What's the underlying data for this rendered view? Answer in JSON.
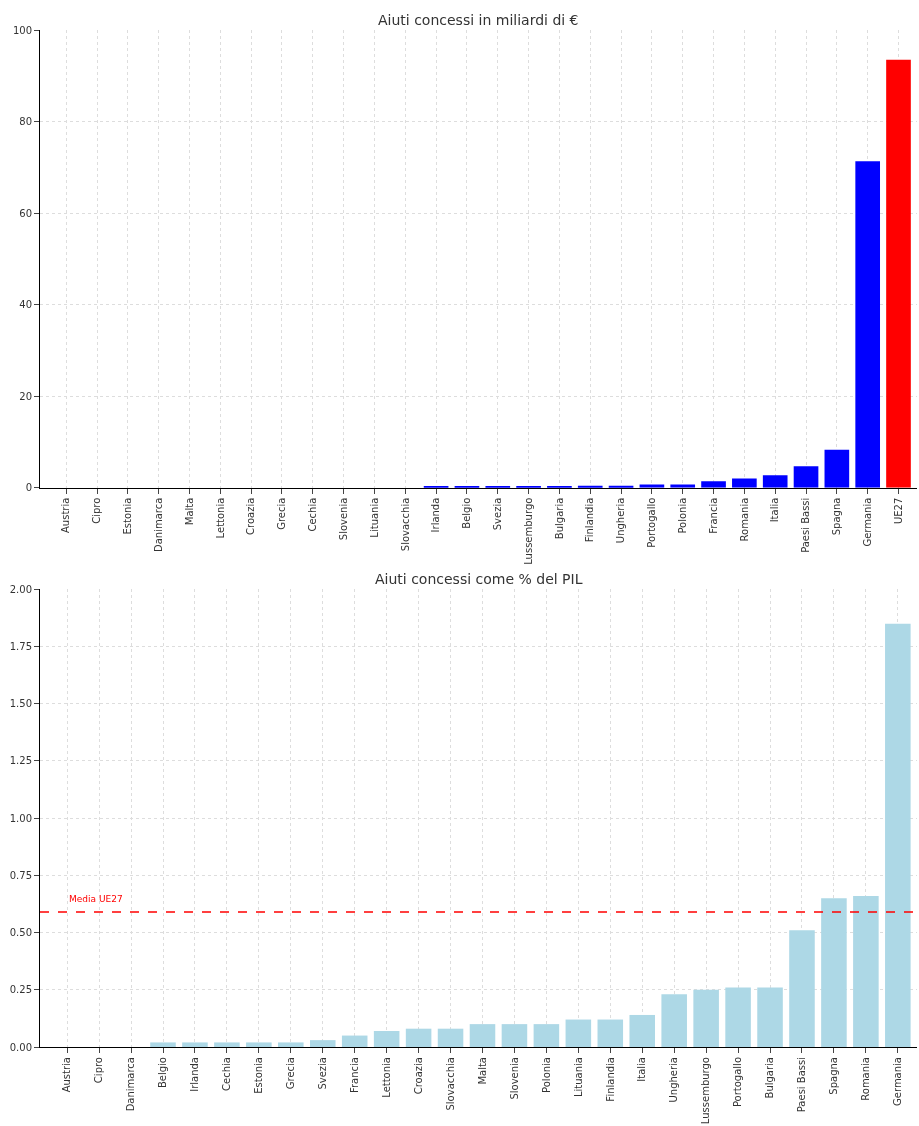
{
  "chart_data": [
    {
      "type": "bar",
      "title": "Aiuti concessi in miliardi di €",
      "categories": [
        "Austria",
        "Cipro",
        "Estonia",
        "Danimarca",
        "Malta",
        "Lettonia",
        "Croazia",
        "Grecia",
        "Cechia",
        "Slovenia",
        "Lituania",
        "Slovacchia",
        "Irlanda",
        "Belgio",
        "Svezia",
        "Lussemburgo",
        "Bulgaria",
        "Finlandia",
        "Ungheria",
        "Portogallo",
        "Polonia",
        "Francia",
        "Romania",
        "Italia",
        "Paesi Bassi",
        "Spagna",
        "Germania",
        "UE27"
      ],
      "values": [
        0,
        0,
        0,
        0,
        0,
        0,
        0,
        0,
        0,
        0,
        0,
        0,
        0.2,
        0.2,
        0.2,
        0.2,
        0.2,
        0.4,
        0.4,
        0.7,
        0.7,
        1.4,
        2.0,
        2.7,
        4.7,
        8.3,
        71.3,
        93.5
      ],
      "colors": [
        "#0000ff",
        "#0000ff",
        "#0000ff",
        "#0000ff",
        "#0000ff",
        "#0000ff",
        "#0000ff",
        "#0000ff",
        "#0000ff",
        "#0000ff",
        "#0000ff",
        "#0000ff",
        "#0000ff",
        "#0000ff",
        "#0000ff",
        "#0000ff",
        "#0000ff",
        "#0000ff",
        "#0000ff",
        "#0000ff",
        "#0000ff",
        "#0000ff",
        "#0000ff",
        "#0000ff",
        "#0000ff",
        "#0000ff",
        "#0000ff",
        "#ff0000"
      ],
      "ylim": [
        0,
        100
      ],
      "yticks": [
        0,
        20,
        40,
        60,
        80,
        100
      ],
      "grid": true
    },
    {
      "type": "bar",
      "title": "Aiuti concessi come % del PIL",
      "categories": [
        "Austria",
        "Cipro",
        "Danimarca",
        "Belgio",
        "Irlanda",
        "Cechia",
        "Estonia",
        "Grecia",
        "Svezia",
        "Francia",
        "Lettonia",
        "Croazia",
        "Slovacchia",
        "Malta",
        "Slovenia",
        "Polonia",
        "Lituania",
        "Finlandia",
        "Italia",
        "Ungheria",
        "Lussemburgo",
        "Portogallo",
        "Bulgaria",
        "Paesi Bassi",
        "Spagna",
        "Romania",
        "Germania"
      ],
      "values": [
        0,
        0,
        0,
        0.02,
        0.02,
        0.02,
        0.02,
        0.02,
        0.03,
        0.05,
        0.07,
        0.08,
        0.08,
        0.1,
        0.1,
        0.1,
        0.12,
        0.12,
        0.14,
        0.23,
        0.25,
        0.26,
        0.26,
        0.51,
        0.65,
        0.66,
        1.85
      ],
      "color": "#add8e6",
      "ylim": [
        0,
        2
      ],
      "yticks": [
        {
          "value": 0,
          "label": "0.00"
        },
        {
          "value": 0.25,
          "label": "0.25"
        },
        {
          "value": 0.5,
          "label": "0.50"
        },
        {
          "value": 0.75,
          "label": "0.75"
        },
        {
          "value": 1,
          "label": "1.00"
        },
        {
          "value": 1.25,
          "label": "1.25"
        },
        {
          "value": 1.5,
          "label": "1.50"
        },
        {
          "value": 1.75,
          "label": "1.75"
        },
        {
          "value": 2,
          "label": "2.00"
        }
      ],
      "ref_lines": [
        {
          "axis": "y",
          "value": 0.59,
          "label": "Media UE27",
          "color": "#ff0000",
          "line_style": "dashed"
        }
      ],
      "grid": true
    }
  ]
}
